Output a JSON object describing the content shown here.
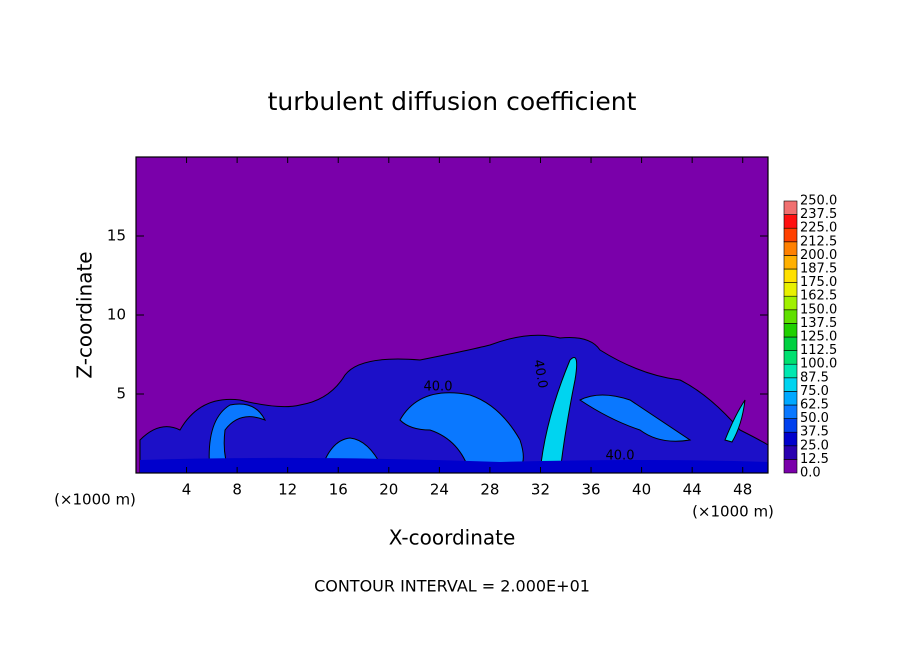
{
  "chart_data": {
    "type": "contour",
    "title": "turbulent diffusion coefficient",
    "x_label": "X-coordinate",
    "y_label": "Z-coordinate",
    "x_unit": "(×1000 m)",
    "footer": "CONTOUR INTERVAL = 2.000E+01",
    "xlim": [
      0,
      50
    ],
    "ylim": [
      0,
      20
    ],
    "xticks": [
      4,
      8,
      12,
      16,
      20,
      24,
      28,
      32,
      36,
      40,
      44,
      48
    ],
    "yticks": [
      5,
      10,
      15
    ],
    "colorbar": {
      "levels": [
        {
          "value": 0,
          "label": "0.0"
        },
        {
          "value": 12.5,
          "label": "12.5"
        },
        {
          "value": 25,
          "label": "25.0"
        },
        {
          "value": 37.5,
          "label": "37.5"
        },
        {
          "value": 50,
          "label": "50.0"
        },
        {
          "value": 62.5,
          "label": "62.5"
        },
        {
          "value": 75,
          "label": "75.0"
        },
        {
          "value": 87.5,
          "label": "87.5"
        },
        {
          "value": 100,
          "label": "100.0"
        },
        {
          "value": 112.5,
          "label": "112.5"
        },
        {
          "value": 125,
          "label": "125.0"
        },
        {
          "value": 137.5,
          "label": "137.5"
        },
        {
          "value": 150,
          "label": "150.0"
        },
        {
          "value": 162.5,
          "label": "162.5"
        },
        {
          "value": 175,
          "label": "175.0"
        },
        {
          "value": 187.5,
          "label": "187.5"
        },
        {
          "value": 200,
          "label": "200.0"
        },
        {
          "value": 212.5,
          "label": "212.5"
        },
        {
          "value": 225,
          "label": "225.0"
        },
        {
          "value": 237.5,
          "label": "237.5"
        },
        {
          "value": 250,
          "label": "250.0"
        }
      ],
      "colors": [
        "#7a00aa",
        "#2a00b0",
        "#0000cc",
        "#0040ee",
        "#0a78ff",
        "#00a8ff",
        "#00d4f0",
        "#00e8b0",
        "#00e070",
        "#00d040",
        "#20d000",
        "#60e000",
        "#a0f000",
        "#e8f000",
        "#ffe000",
        "#ffb000",
        "#ff8000",
        "#ff4000",
        "#ff1010",
        "#f07070"
      ]
    },
    "background_color": "#7a00aa",
    "contour_labels": [
      {
        "value": 40,
        "label": "40.0"
      },
      {
        "value": 40,
        "label": "40.0"
      },
      {
        "value": 40,
        "label": "40.0"
      }
    ]
  }
}
